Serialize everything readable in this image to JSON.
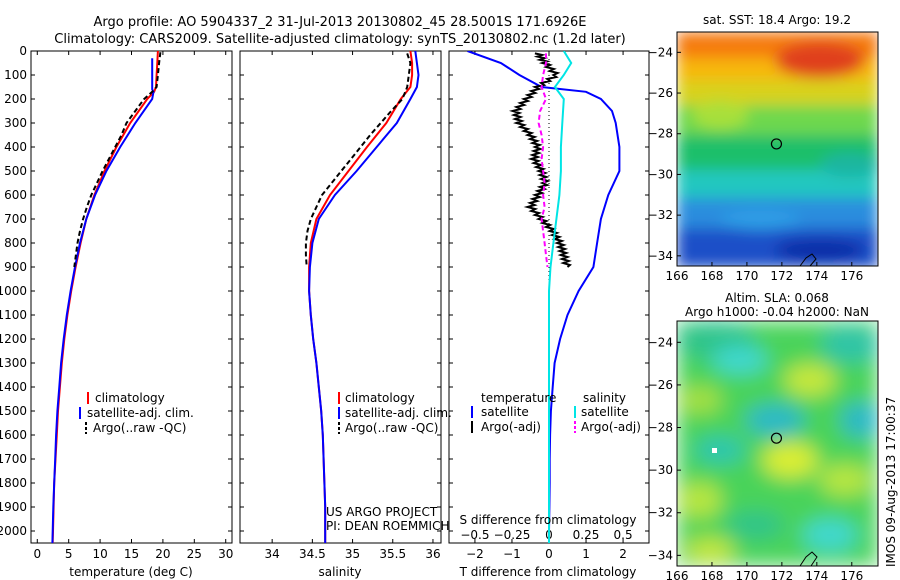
{
  "title": {
    "line1": "Argo profile: AO 5904337_2 31-Jul-2013 20130802_45 28.5001S 171.6926E",
    "line2": "Climatology: CARS2009. Satellite-adjusted climatology: synTS_20130802.nc (1.2d later)"
  },
  "colors": {
    "climatology": "#ff0000",
    "satellite": "#0000ff",
    "argo": "#000000",
    "salinity_satellite": "#00e5e5",
    "salinity_argo": "#ff00ff"
  },
  "annotations": {
    "project": "US ARGO PROJECT",
    "pi": "PI: DEAN ROEMMICH",
    "imos_stamp": "IMOS 09-Aug-2013 17:00:37"
  },
  "chart_data": [
    {
      "type": "line",
      "id": "temperature",
      "xlabel": "temperature (deg C)",
      "xlim": [
        -1,
        31
      ],
      "ylim": [
        2050,
        0
      ],
      "xticks": [
        0,
        5,
        10,
        15,
        20,
        25,
        30
      ],
      "yticks": [
        0,
        100,
        200,
        300,
        400,
        500,
        600,
        700,
        800,
        900,
        1000,
        1100,
        1200,
        1300,
        1400,
        1500,
        1600,
        1700,
        1800,
        1900,
        2000
      ],
      "legend": {
        "placement": "lower-right",
        "items": [
          "climatology",
          "satellite-adj. clim.",
          "Argo(..raw -QC)"
        ]
      },
      "series": [
        {
          "name": "climatology",
          "color": "#ff0000",
          "style": "solid",
          "y": [
            0,
            50,
            100,
            150,
            170,
            200,
            300,
            400,
            500,
            600,
            700,
            800,
            900,
            1000,
            1100,
            1200,
            1300,
            1400,
            1500,
            1600,
            1700,
            1800,
            1900,
            2000,
            2050
          ],
          "x": [
            19.2,
            19.1,
            19.0,
            18.9,
            18.6,
            17.5,
            14.8,
            12.6,
            10.7,
            9.1,
            7.8,
            6.9,
            6.1,
            5.4,
            4.8,
            4.3,
            3.9,
            3.6,
            3.3,
            3.1,
            2.9,
            2.7,
            2.6,
            2.5,
            2.45
          ]
        },
        {
          "name": "satellite-adj. clim.",
          "color": "#0000ff",
          "style": "solid",
          "y": [
            30,
            160,
            170,
            200,
            300,
            400,
            500,
            600,
            700,
            800,
            900,
            1000,
            1100,
            1200,
            1300,
            1400,
            1500,
            1600,
            1700,
            1800,
            1900,
            2000,
            2050
          ],
          "x": [
            18.3,
            18.3,
            18.5,
            18.3,
            15.6,
            13.2,
            11.0,
            9.2,
            7.8,
            6.8,
            6.0,
            5.3,
            4.7,
            4.2,
            3.8,
            3.5,
            3.2,
            3.0,
            2.85,
            2.7,
            2.55,
            2.45,
            2.4
          ]
        },
        {
          "name": "Argo(..raw -QC)",
          "color": "#000000",
          "style": "dashed",
          "y": [
            5,
            50,
            100,
            150,
            170,
            200,
            250,
            300,
            350,
            400,
            450,
            500,
            550,
            600,
            650,
            700,
            750,
            800,
            900
          ],
          "x": [
            19.6,
            19.4,
            19.2,
            19.0,
            18.3,
            17.0,
            15.6,
            14.2,
            13.4,
            12.4,
            11.4,
            10.4,
            9.5,
            8.6,
            7.9,
            7.3,
            6.8,
            6.4,
            5.9
          ]
        }
      ]
    },
    {
      "type": "line",
      "id": "salinity",
      "xlabel": "salinity",
      "xlim": [
        33.6,
        36.1
      ],
      "ylim": [
        2050,
        0
      ],
      "xticks": [
        34,
        34.5,
        35,
        35.5,
        36
      ],
      "legend": {
        "placement": "lower-right",
        "items": [
          "climatology",
          "satellite-adj. clim.",
          "Argo(..raw -QC)"
        ]
      },
      "series": [
        {
          "name": "climatology",
          "color": "#ff0000",
          "style": "solid",
          "y": [
            0,
            50,
            100,
            150,
            200,
            300,
            400,
            500,
            600,
            700,
            800,
            900,
            1000,
            1100,
            1200,
            1300,
            1400,
            1500,
            1600,
            1700,
            1800,
            1900,
            2000,
            2050
          ],
          "x": [
            35.72,
            35.74,
            35.74,
            35.72,
            35.6,
            35.42,
            35.18,
            34.95,
            34.72,
            34.55,
            34.48,
            34.46,
            34.46,
            34.48,
            34.51,
            34.55,
            34.58,
            34.61,
            34.63,
            34.64,
            34.65,
            34.66,
            34.66,
            34.66
          ]
        },
        {
          "name": "satellite-adj. clim.",
          "color": "#0000ff",
          "style": "solid",
          "y": [
            0,
            50,
            100,
            150,
            200,
            300,
            400,
            500,
            600,
            700,
            800,
            900,
            1000,
            1100,
            1200,
            1300,
            1400,
            1500,
            1600,
            1700,
            1800,
            1900,
            2000,
            2050
          ],
          "x": [
            35.78,
            35.8,
            35.82,
            35.8,
            35.72,
            35.55,
            35.3,
            35.05,
            34.78,
            34.58,
            34.5,
            34.47,
            34.46,
            34.48,
            34.51,
            34.55,
            34.58,
            34.61,
            34.63,
            34.64,
            34.65,
            34.66,
            34.66,
            34.66
          ]
        },
        {
          "name": "Argo(..raw -QC)",
          "color": "#000000",
          "style": "dashed",
          "y": [
            10,
            50,
            100,
            150,
            200,
            250,
            300,
            350,
            400,
            450,
            500,
            550,
            600,
            650,
            700,
            750,
            800,
            850,
            900
          ],
          "x": [
            35.68,
            35.72,
            35.7,
            35.68,
            35.62,
            35.48,
            35.35,
            35.22,
            35.1,
            34.98,
            34.86,
            34.74,
            34.62,
            34.55,
            34.48,
            34.44,
            34.42,
            34.42,
            34.43
          ]
        }
      ]
    },
    {
      "type": "line",
      "id": "differences",
      "xlabel": "T difference from climatology",
      "xlabel_top": "S difference from climatology",
      "xlim": [
        -2.7,
        2.7
      ],
      "ylim": [
        2050,
        0
      ],
      "xticks": [
        -2,
        -1,
        0,
        1,
        2
      ],
      "xtick_labels": [
        "−2",
        "−1",
        "0",
        "1",
        "2"
      ],
      "xticks_s": [
        -0.5,
        -0.25,
        0,
        0.25,
        0.5
      ],
      "xtick_s_labels": [
        "−0.5",
        "−0.25",
        "0",
        "0.25",
        "0.5"
      ],
      "zero_line": "dotted",
      "legend": {
        "placement": "lower-center",
        "temperature_header": "temperature",
        "salinity_header": "salinity",
        "items": [
          "satellite",
          "Argo(-adj)",
          "satellite",
          "Argo(-adj)"
        ]
      },
      "series": [
        {
          "name": "temperature satellite",
          "color": "#0000ff",
          "style": "solid",
          "y": [
            0,
            50,
            100,
            150,
            170,
            200,
            250,
            300,
            400,
            500,
            600,
            700,
            800,
            900,
            1000,
            1100,
            1200,
            1300,
            1400,
            1500,
            1600,
            1700,
            1800,
            1900,
            2000,
            2050
          ],
          "x": [
            -2.2,
            -1.3,
            -0.8,
            -0.2,
            1.0,
            1.4,
            1.7,
            1.8,
            1.9,
            1.9,
            1.6,
            1.4,
            1.3,
            1.2,
            0.8,
            0.5,
            0.3,
            0.15,
            0.1,
            0.05,
            0.03,
            0.02,
            0.02,
            0.01,
            0.0,
            0.0
          ]
        },
        {
          "name": "temperature Argo(-adj)",
          "color": "#000000",
          "style": "jagged",
          "y": [
            10,
            50,
            100,
            150,
            200,
            250,
            300,
            350,
            400,
            450,
            500,
            550,
            600,
            650,
            700,
            750,
            800,
            850,
            900
          ],
          "x": [
            -0.3,
            -0.1,
            0.2,
            -0.3,
            -0.6,
            -0.9,
            -0.8,
            -0.5,
            -0.3,
            -0.4,
            -0.2,
            -0.1,
            -0.3,
            -0.5,
            -0.2,
            0.1,
            0.3,
            0.4,
            0.5
          ]
        },
        {
          "name": "salinity satellite",
          "color": "#00e5e5",
          "style": "solid",
          "y": [
            0,
            50,
            100,
            150,
            200,
            300,
            400,
            500,
            600,
            700,
            800,
            900,
            1000,
            1200,
            1400,
            1600,
            1800,
            2000,
            2050
          ],
          "x": [
            0.1,
            0.15,
            0.1,
            0.04,
            0.1,
            0.09,
            0.08,
            0.08,
            0.07,
            0.05,
            0.03,
            0.01,
            0.0,
            0.0,
            0.0,
            0.0,
            0.0,
            0.0,
            0.0
          ]
        },
        {
          "name": "salinity Argo(-adj)",
          "color": "#ff00ff",
          "style": "dashed",
          "y": [
            10,
            50,
            100,
            150,
            200,
            250,
            300,
            350,
            400,
            450,
            500,
            550,
            600,
            650,
            700,
            750,
            800,
            850,
            900
          ],
          "x": [
            -0.02,
            -0.02,
            -0.04,
            -0.05,
            -0.02,
            -0.06,
            -0.07,
            -0.05,
            -0.04,
            -0.05,
            -0.04,
            -0.03,
            -0.04,
            -0.03,
            -0.05,
            -0.04,
            -0.03,
            -0.02,
            -0.01
          ]
        }
      ]
    },
    {
      "type": "heatmap",
      "id": "sst_map",
      "title": "sat. SST: 18.4 Argo: 19.2",
      "xlim": [
        166,
        177.5
      ],
      "ylim": [
        -34.5,
        -23
      ],
      "xticks": [
        166,
        168,
        170,
        172,
        174,
        176
      ],
      "yticks": [
        -24,
        -26,
        -28,
        -30,
        -32,
        -34
      ],
      "ytick_labels": [
        "−24",
        "−26",
        "−28",
        "−30",
        "−32",
        "−34"
      ],
      "marker": {
        "lon": 171.69,
        "lat": -28.5
      }
    },
    {
      "type": "heatmap",
      "id": "sla_map",
      "title": "Altim. SLA: 0.068",
      "subtitle": "Argo h1000: -0.04 h2000: NaN",
      "xlim": [
        166,
        177.5
      ],
      "ylim": [
        -34.5,
        -23
      ],
      "xticks": [
        166,
        168,
        170,
        172,
        174,
        176
      ],
      "yticks": [
        -24,
        -26,
        -28,
        -30,
        -32,
        -34
      ],
      "ytick_labels": [
        "−24",
        "−26",
        "−28",
        "−30",
        "−32",
        "−34"
      ],
      "marker": {
        "lon": 171.69,
        "lat": -28.5
      }
    }
  ]
}
